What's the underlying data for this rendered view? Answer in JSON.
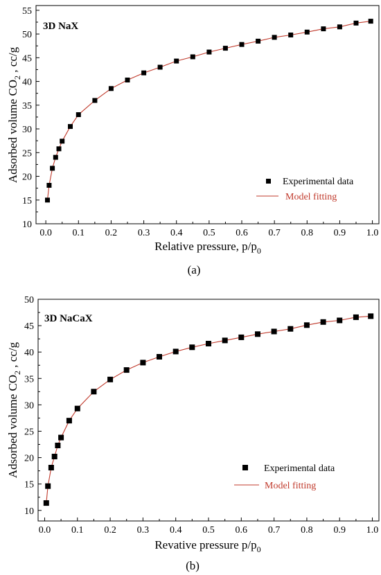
{
  "colors": {
    "marker": "#000000",
    "fit_line": "#c0392b",
    "fit_text": "#c0392b",
    "axis": "#000000"
  },
  "chart_data": [
    {
      "type": "scatter",
      "title": "3D NaX",
      "caption": "(a)",
      "xlabel_main": "Relative pressure, p/p",
      "xlabel_sub": "0",
      "ylabel_main": "Adsorbed volume CO",
      "ylabel_sub": "2",
      "ylabel_tail": " , cc/g",
      "xlim": [
        -0.03,
        1.02
      ],
      "ylim": [
        10,
        56
      ],
      "xticks": [
        0.0,
        0.1,
        0.2,
        0.3,
        0.4,
        0.5,
        0.6,
        0.7,
        0.8,
        0.9,
        1.0
      ],
      "xtick_labels": [
        "0.0",
        "0.1",
        "0.2",
        "0.3",
        "0.4",
        "0.5",
        "0.6",
        "0.7",
        "0.8",
        "0.9",
        "1.0"
      ],
      "yticks": [
        10,
        15,
        20,
        25,
        30,
        35,
        40,
        45,
        50,
        55
      ],
      "ytick_labels": [
        "10",
        "15",
        "20",
        "25",
        "30",
        "35",
        "40",
        "45",
        "50",
        "55"
      ],
      "legend": [
        "Experimental data",
        "Model fitting"
      ],
      "legend_position": "lower-right",
      "series": [
        {
          "name": "Experimental data",
          "x": [
            0.005,
            0.01,
            0.02,
            0.03,
            0.04,
            0.05,
            0.075,
            0.1,
            0.15,
            0.2,
            0.25,
            0.3,
            0.35,
            0.4,
            0.45,
            0.5,
            0.55,
            0.6,
            0.65,
            0.7,
            0.75,
            0.8,
            0.85,
            0.9,
            0.95,
            0.995
          ],
          "y": [
            15.0,
            18.1,
            21.7,
            24.0,
            25.8,
            27.4,
            30.5,
            33.0,
            36.0,
            38.5,
            40.3,
            41.8,
            43.0,
            44.3,
            45.2,
            46.2,
            47.0,
            47.8,
            48.5,
            49.3,
            49.8,
            50.4,
            51.1,
            51.5,
            52.3,
            52.7
          ]
        },
        {
          "name": "Model fitting",
          "x": [
            0.005,
            0.01,
            0.02,
            0.03,
            0.04,
            0.05,
            0.075,
            0.1,
            0.15,
            0.2,
            0.25,
            0.3,
            0.35,
            0.4,
            0.45,
            0.5,
            0.55,
            0.6,
            0.65,
            0.7,
            0.75,
            0.8,
            0.85,
            0.9,
            0.95,
            0.995
          ],
          "y": [
            15.0,
            18.1,
            21.7,
            24.0,
            25.8,
            27.4,
            30.5,
            33.0,
            36.0,
            38.5,
            40.3,
            41.8,
            43.0,
            44.3,
            45.2,
            46.2,
            47.0,
            47.8,
            48.5,
            49.3,
            49.8,
            50.4,
            51.1,
            51.5,
            52.3,
            52.7
          ]
        }
      ]
    },
    {
      "type": "scatter",
      "title": "3D NaCaX",
      "caption": "(b)",
      "xlabel_main": "Revative pressure p/p",
      "xlabel_sub": "0",
      "ylabel_main": "Adsorbed volume CO",
      "ylabel_sub": "2",
      "ylabel_tail": " , cc/g",
      "xlim": [
        -0.02,
        1.02
      ],
      "ylim": [
        8,
        50
      ],
      "xticks": [
        0.0,
        0.1,
        0.2,
        0.3,
        0.4,
        0.5,
        0.6,
        0.7,
        0.8,
        0.9,
        1.0
      ],
      "xtick_labels": [
        "0.0",
        "0.1",
        "0.2",
        "0.3",
        "0.4",
        "0.5",
        "0.6",
        "0.7",
        "0.8",
        "0.9",
        "1.0"
      ],
      "yticks": [
        10,
        15,
        20,
        25,
        30,
        35,
        40,
        45,
        50
      ],
      "ytick_labels": [
        "10",
        "15",
        "20",
        "25",
        "30",
        "35",
        "40",
        "45",
        "50"
      ],
      "legend": [
        "Experimental data",
        "Model fitting"
      ],
      "legend_position": "lower-right",
      "series": [
        {
          "name": "Experimental data",
          "x": [
            0.005,
            0.01,
            0.02,
            0.03,
            0.04,
            0.05,
            0.075,
            0.1,
            0.15,
            0.2,
            0.25,
            0.3,
            0.35,
            0.4,
            0.45,
            0.5,
            0.55,
            0.6,
            0.65,
            0.7,
            0.75,
            0.8,
            0.85,
            0.9,
            0.95,
            0.995
          ],
          "y": [
            11.4,
            14.6,
            18.1,
            20.2,
            22.3,
            23.8,
            27.0,
            29.3,
            32.5,
            34.8,
            36.6,
            38.0,
            39.1,
            40.1,
            40.9,
            41.6,
            42.2,
            42.8,
            43.4,
            43.9,
            44.4,
            45.1,
            45.7,
            46.0,
            46.6,
            46.8
          ]
        },
        {
          "name": "Model fitting",
          "x": [
            0.005,
            0.01,
            0.02,
            0.03,
            0.04,
            0.05,
            0.075,
            0.1,
            0.15,
            0.2,
            0.25,
            0.3,
            0.35,
            0.4,
            0.45,
            0.5,
            0.55,
            0.6,
            0.65,
            0.7,
            0.75,
            0.8,
            0.85,
            0.9,
            0.95,
            0.995
          ],
          "y": [
            11.4,
            14.6,
            18.1,
            20.2,
            22.3,
            23.8,
            27.0,
            29.3,
            32.5,
            34.8,
            36.6,
            38.0,
            39.1,
            40.1,
            40.9,
            41.6,
            42.2,
            42.8,
            43.4,
            43.9,
            44.4,
            45.1,
            45.7,
            46.0,
            46.6,
            46.8
          ]
        }
      ]
    }
  ]
}
